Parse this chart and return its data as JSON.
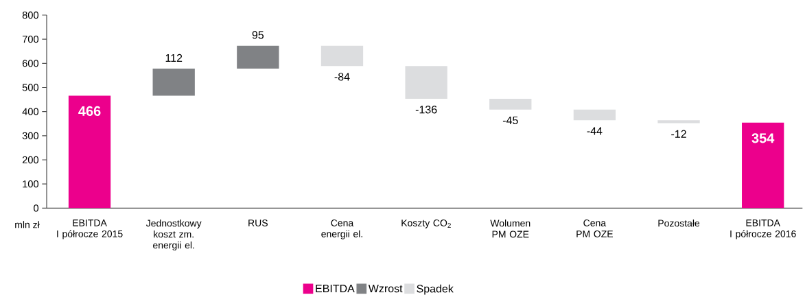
{
  "chart_data": {
    "type": "bar",
    "ylabel": "mln zł",
    "categories": [
      "EBITDA\nI półrocze 2015",
      "Jednostkowy\nkoszt zm.\nenergii el.",
      "RUS",
      "Cena\nenergii el.",
      "Koszty CO$_{2}$",
      "Wolumen\nPM OZE",
      "Cena\nPM OZE",
      "Pozostałe",
      "EBITDA\nI półrocze 2016"
    ],
    "series": [
      {
        "name": "EBITDA",
        "color": "#ec008c",
        "values": [
          466,
          null,
          null,
          null,
          null,
          null,
          null,
          null,
          354
        ],
        "base": [
          0,
          null,
          null,
          null,
          null,
          null,
          null,
          null,
          0
        ]
      },
      {
        "name": "Wzrost",
        "color": "#808285",
        "values": [
          null,
          112,
          95,
          null,
          null,
          null,
          null,
          null,
          null
        ],
        "base": [
          null,
          466,
          578,
          null,
          null,
          null,
          null,
          null,
          null
        ]
      },
      {
        "name": "Spadek",
        "color": "#dcdddf",
        "values": [
          null,
          null,
          null,
          -84,
          -136,
          -45,
          -44,
          -12,
          null
        ],
        "base": [
          null,
          null,
          null,
          673,
          589,
          453,
          408,
          364,
          null
        ]
      }
    ],
    "ylim": [
      0,
      800
    ],
    "yticks": [
      0,
      100,
      200,
      300,
      400,
      500,
      600,
      700,
      800
    ],
    "data_labels": true,
    "legend": "bottom",
    "grid": false
  }
}
